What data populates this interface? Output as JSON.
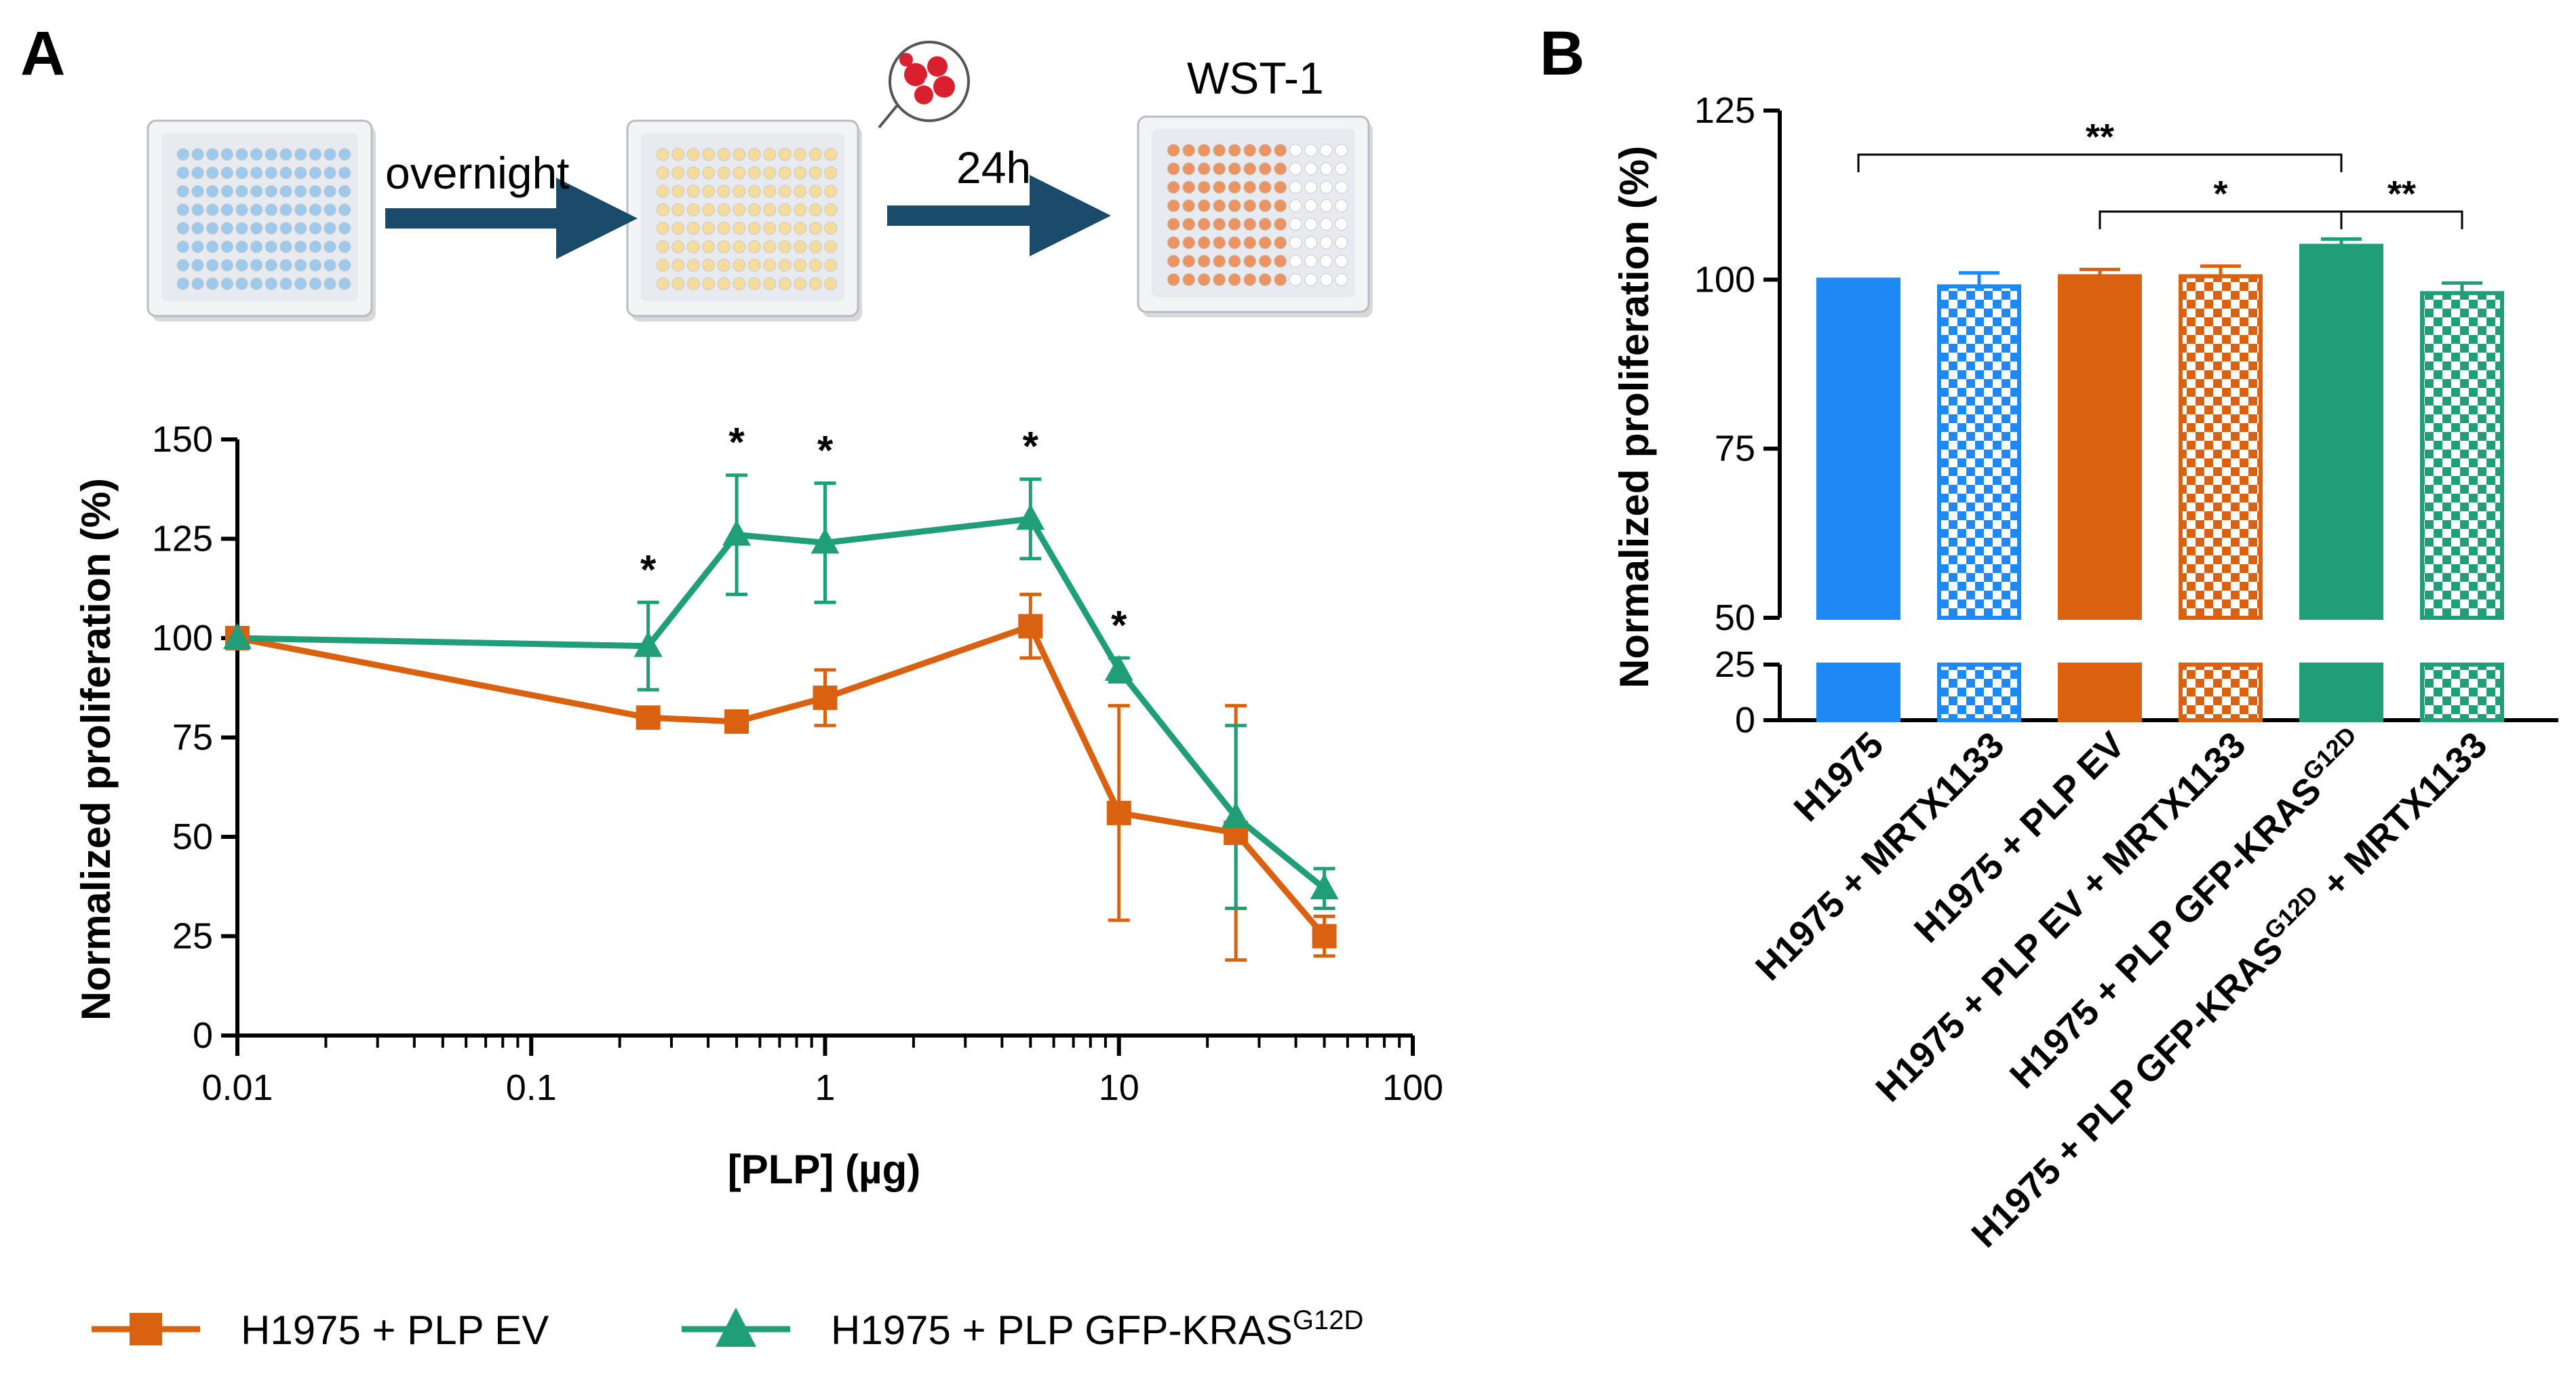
{
  "panels": {
    "a_letter": "A",
    "b_letter": "B"
  },
  "workflow": {
    "step1_label": "overnight",
    "step2_label": "24h",
    "readout_label": "WST-1"
  },
  "colors": {
    "ev": "#D9610F",
    "kras": "#1F9E78",
    "h1975": "#1E88F5",
    "plate_blue": "#9CC9EC",
    "plate_yellow": "#F5DC9C",
    "plate_orange": "#EB9461",
    "arrow": "#1B4B6B"
  },
  "chart_data": [
    {
      "type": "line",
      "xscale": "log",
      "x": [
        0.01,
        0.25,
        0.5,
        1,
        5,
        10,
        25,
        50
      ],
      "xlim": [
        0.01,
        100
      ],
      "ylim": [
        0,
        150
      ],
      "xticks": [
        "0.01",
        "0.1",
        "1",
        "10",
        "100"
      ],
      "yticks": [
        "0",
        "25",
        "50",
        "75",
        "100",
        "125",
        "150"
      ],
      "xlabel": "[PLP] (µg)",
      "ylabel": "Normalized proliferation (%)",
      "series": [
        {
          "name": "H1975 + PLP EV",
          "marker": "square",
          "values": [
            100,
            80,
            79,
            85,
            103,
            56,
            51,
            25
          ],
          "errors": [
            0,
            1,
            1,
            7,
            8,
            27,
            32,
            5
          ]
        },
        {
          "name": "H1975 + PLP GFP-KRAS",
          "superscript": "G12D",
          "marker": "triangle",
          "values": [
            100,
            98,
            126,
            124,
            130,
            92,
            55,
            37
          ],
          "errors": [
            0,
            11,
            15,
            15,
            10,
            3,
            23,
            5
          ]
        }
      ],
      "significance": [
        {
          "x": 0.25,
          "label": "*"
        },
        {
          "x": 0.5,
          "label": "*"
        },
        {
          "x": 1,
          "label": "*"
        },
        {
          "x": 5,
          "label": "*"
        },
        {
          "x": 10,
          "label": "*"
        }
      ],
      "legend_position": "bottom"
    },
    {
      "type": "bar",
      "categories": [
        {
          "text": "H1975",
          "sup": "",
          "tail": ""
        },
        {
          "text": "H1975 + MRTX1133",
          "sup": "",
          "tail": ""
        },
        {
          "text": "H1975 + PLP EV",
          "sup": "",
          "tail": ""
        },
        {
          "text": "H1975 + PLP EV + MRTX1133",
          "sup": "",
          "tail": ""
        },
        {
          "text": "H1975 + PLP GFP-KRAS",
          "sup": "G12D",
          "tail": ""
        },
        {
          "text": "H1975 + PLP GFP-KRAS",
          "sup": "G12D",
          "tail": " + MRTX1133"
        }
      ],
      "values": [
        100,
        99,
        100.5,
        100.5,
        105,
        98
      ],
      "errors": [
        0,
        2,
        1,
        1.5,
        1,
        1.5
      ],
      "patterns": [
        "solid",
        "checker",
        "solid",
        "checker",
        "solid",
        "checker"
      ],
      "bar_colors": [
        "#1E88F5",
        "#1E88F5",
        "#D9610F",
        "#D9610F",
        "#1F9E78",
        "#1F9E78"
      ],
      "ylabel": "Normalized proliferation (%)",
      "yticks_upper": [
        "50",
        "75",
        "100",
        "125"
      ],
      "yticks_lower": [
        "0",
        "25"
      ],
      "ylim_upper": [
        50,
        125
      ],
      "ylim_lower": [
        0,
        25
      ],
      "comparisons": [
        {
          "from": 0,
          "to": 4,
          "label": "**"
        },
        {
          "from": 2,
          "to": 4,
          "label": "*"
        },
        {
          "from": 4,
          "to": 5,
          "label": "**"
        }
      ]
    }
  ]
}
